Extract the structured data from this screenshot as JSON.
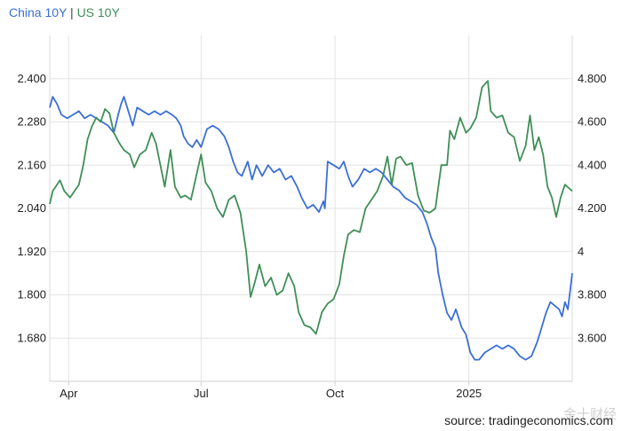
{
  "legend": {
    "series1": "China 10Y",
    "separator": "|",
    "series2": "US 10Y"
  },
  "source": "source: tradingeconomics.com",
  "watermark": "金十财经",
  "chart_data": {
    "type": "line",
    "grid": true,
    "x_ticks": [
      "Apr",
      "Jul",
      "Oct",
      "2025"
    ],
    "x_tick_dates": [
      "2024-04-01",
      "2024-07-01",
      "2024-10-01",
      "2025-01-01"
    ],
    "xlim": [
      "2024-03-19",
      "2025-03-13"
    ],
    "y_left_ticks": [
      "2.400",
      "2.280",
      "2.160",
      "2.040",
      "1.920",
      "1.800",
      "1.680"
    ],
    "y_left_lim": [
      1.56,
      2.52
    ],
    "y_right_ticks": [
      "4.800",
      "4.600",
      "4.400",
      "4.200",
      "4",
      "3.800",
      "3.600"
    ],
    "y_right_lim": [
      3.4,
      5.0
    ],
    "series": [
      {
        "name": "China 10Y",
        "axis": "left",
        "color": "#3b6fd4",
        "points": [
          [
            "2024-03-19",
            2.32
          ],
          [
            "2024-03-21",
            2.35
          ],
          [
            "2024-03-24",
            2.33
          ],
          [
            "2024-03-27",
            2.3
          ],
          [
            "2024-03-31",
            2.29
          ],
          [
            "2024-04-04",
            2.3
          ],
          [
            "2024-04-08",
            2.31
          ],
          [
            "2024-04-12",
            2.29
          ],
          [
            "2024-04-16",
            2.3
          ],
          [
            "2024-04-20",
            2.29
          ],
          [
            "2024-04-24",
            2.28
          ],
          [
            "2024-04-28",
            2.27
          ],
          [
            "2024-05-02",
            2.25
          ],
          [
            "2024-05-05",
            2.3
          ],
          [
            "2024-05-07",
            2.33
          ],
          [
            "2024-05-09",
            2.35
          ],
          [
            "2024-05-12",
            2.31
          ],
          [
            "2024-05-15",
            2.27
          ],
          [
            "2024-05-18",
            2.32
          ],
          [
            "2024-05-22",
            2.31
          ],
          [
            "2024-05-26",
            2.3
          ],
          [
            "2024-05-30",
            2.31
          ],
          [
            "2024-06-03",
            2.3
          ],
          [
            "2024-06-07",
            2.31
          ],
          [
            "2024-06-11",
            2.3
          ],
          [
            "2024-06-14",
            2.29
          ],
          [
            "2024-06-17",
            2.27
          ],
          [
            "2024-06-19",
            2.24
          ],
          [
            "2024-06-22",
            2.22
          ],
          [
            "2024-06-25",
            2.21
          ],
          [
            "2024-06-28",
            2.23
          ],
          [
            "2024-07-01",
            2.21
          ],
          [
            "2024-07-05",
            2.26
          ],
          [
            "2024-07-09",
            2.27
          ],
          [
            "2024-07-13",
            2.26
          ],
          [
            "2024-07-17",
            2.24
          ],
          [
            "2024-07-20",
            2.21
          ],
          [
            "2024-07-23",
            2.17
          ],
          [
            "2024-07-26",
            2.14
          ],
          [
            "2024-07-29",
            2.13
          ],
          [
            "2024-08-02",
            2.17
          ],
          [
            "2024-08-05",
            2.12
          ],
          [
            "2024-08-08",
            2.16
          ],
          [
            "2024-08-12",
            2.13
          ],
          [
            "2024-08-16",
            2.16
          ],
          [
            "2024-08-20",
            2.14
          ],
          [
            "2024-08-24",
            2.15
          ],
          [
            "2024-08-28",
            2.12
          ],
          [
            "2024-09-01",
            2.13
          ],
          [
            "2024-09-05",
            2.1
          ],
          [
            "2024-09-08",
            2.07
          ],
          [
            "2024-09-12",
            2.04
          ],
          [
            "2024-09-16",
            2.05
          ],
          [
            "2024-09-20",
            2.03
          ],
          [
            "2024-09-23",
            2.06
          ],
          [
            "2024-09-24",
            2.04
          ],
          [
            "2024-09-26",
            2.17
          ],
          [
            "2024-09-30",
            2.16
          ],
          [
            "2024-10-04",
            2.15
          ],
          [
            "2024-10-07",
            2.17
          ],
          [
            "2024-10-10",
            2.13
          ],
          [
            "2024-10-13",
            2.1
          ],
          [
            "2024-10-17",
            2.12
          ],
          [
            "2024-10-21",
            2.15
          ],
          [
            "2024-10-25",
            2.14
          ],
          [
            "2024-10-29",
            2.15
          ],
          [
            "2024-11-02",
            2.14
          ],
          [
            "2024-11-06",
            2.12
          ],
          [
            "2024-11-10",
            2.1
          ],
          [
            "2024-11-14",
            2.09
          ],
          [
            "2024-11-18",
            2.07
          ],
          [
            "2024-11-22",
            2.06
          ],
          [
            "2024-11-26",
            2.05
          ],
          [
            "2024-11-30",
            2.03
          ],
          [
            "2024-12-03",
            2.0
          ],
          [
            "2024-12-06",
            1.96
          ],
          [
            "2024-12-09",
            1.93
          ],
          [
            "2024-12-11",
            1.86
          ],
          [
            "2024-12-14",
            1.8
          ],
          [
            "2024-12-17",
            1.75
          ],
          [
            "2024-12-20",
            1.73
          ],
          [
            "2024-12-23",
            1.76
          ],
          [
            "2024-12-27",
            1.71
          ],
          [
            "2024-12-30",
            1.69
          ],
          [
            "2025-01-02",
            1.64
          ],
          [
            "2025-01-05",
            1.62
          ],
          [
            "2025-01-08",
            1.62
          ],
          [
            "2025-01-12",
            1.64
          ],
          [
            "2025-01-16",
            1.65
          ],
          [
            "2025-01-20",
            1.66
          ],
          [
            "2025-01-24",
            1.65
          ],
          [
            "2025-01-28",
            1.66
          ],
          [
            "2025-02-01",
            1.65
          ],
          [
            "2025-02-05",
            1.63
          ],
          [
            "2025-02-09",
            1.62
          ],
          [
            "2025-02-13",
            1.63
          ],
          [
            "2025-02-17",
            1.67
          ],
          [
            "2025-02-20",
            1.71
          ],
          [
            "2025-02-23",
            1.75
          ],
          [
            "2025-02-26",
            1.78
          ],
          [
            "2025-03-01",
            1.77
          ],
          [
            "2025-03-04",
            1.76
          ],
          [
            "2025-03-06",
            1.74
          ],
          [
            "2025-03-08",
            1.78
          ],
          [
            "2025-03-10",
            1.76
          ],
          [
            "2025-03-13",
            1.86
          ]
        ]
      },
      {
        "name": "US 10Y",
        "axis": "right",
        "color": "#3f8f57",
        "points": [
          [
            "2024-03-19",
            4.22
          ],
          [
            "2024-03-21",
            4.28
          ],
          [
            "2024-03-23",
            4.3
          ],
          [
            "2024-03-26",
            4.33
          ],
          [
            "2024-03-29",
            4.28
          ],
          [
            "2024-04-02",
            4.25
          ],
          [
            "2024-04-05",
            4.28
          ],
          [
            "2024-04-08",
            4.31
          ],
          [
            "2024-04-11",
            4.4
          ],
          [
            "2024-04-14",
            4.52
          ],
          [
            "2024-04-17",
            4.58
          ],
          [
            "2024-04-20",
            4.62
          ],
          [
            "2024-04-23",
            4.6
          ],
          [
            "2024-04-26",
            4.66
          ],
          [
            "2024-04-29",
            4.64
          ],
          [
            "2024-05-02",
            4.55
          ],
          [
            "2024-05-06",
            4.5
          ],
          [
            "2024-05-09",
            4.47
          ],
          [
            "2024-05-13",
            4.45
          ],
          [
            "2024-05-16",
            4.39
          ],
          [
            "2024-05-20",
            4.45
          ],
          [
            "2024-05-24",
            4.47
          ],
          [
            "2024-05-28",
            4.55
          ],
          [
            "2024-05-31",
            4.5
          ],
          [
            "2024-06-03",
            4.4
          ],
          [
            "2024-06-06",
            4.3
          ],
          [
            "2024-06-10",
            4.47
          ],
          [
            "2024-06-13",
            4.3
          ],
          [
            "2024-06-17",
            4.25
          ],
          [
            "2024-06-20",
            4.26
          ],
          [
            "2024-06-24",
            4.24
          ],
          [
            "2024-06-28",
            4.36
          ],
          [
            "2024-07-01",
            4.45
          ],
          [
            "2024-07-04",
            4.32
          ],
          [
            "2024-07-08",
            4.28
          ],
          [
            "2024-07-12",
            4.2
          ],
          [
            "2024-07-16",
            4.16
          ],
          [
            "2024-07-20",
            4.24
          ],
          [
            "2024-07-24",
            4.26
          ],
          [
            "2024-07-28",
            4.18
          ],
          [
            "2024-08-01",
            4.0
          ],
          [
            "2024-08-04",
            3.79
          ],
          [
            "2024-08-07",
            3.86
          ],
          [
            "2024-08-10",
            3.94
          ],
          [
            "2024-08-14",
            3.84
          ],
          [
            "2024-08-18",
            3.88
          ],
          [
            "2024-08-22",
            3.8
          ],
          [
            "2024-08-26",
            3.82
          ],
          [
            "2024-08-30",
            3.9
          ],
          [
            "2024-09-03",
            3.84
          ],
          [
            "2024-09-06",
            3.72
          ],
          [
            "2024-09-10",
            3.66
          ],
          [
            "2024-09-14",
            3.65
          ],
          [
            "2024-09-18",
            3.62
          ],
          [
            "2024-09-22",
            3.72
          ],
          [
            "2024-09-26",
            3.76
          ],
          [
            "2024-09-30",
            3.78
          ],
          [
            "2024-10-04",
            3.85
          ],
          [
            "2024-10-07",
            3.98
          ],
          [
            "2024-10-10",
            4.08
          ],
          [
            "2024-10-14",
            4.1
          ],
          [
            "2024-10-18",
            4.09
          ],
          [
            "2024-10-22",
            4.2
          ],
          [
            "2024-10-26",
            4.24
          ],
          [
            "2024-10-30",
            4.28
          ],
          [
            "2024-11-03",
            4.35
          ],
          [
            "2024-11-06",
            4.44
          ],
          [
            "2024-11-09",
            4.31
          ],
          [
            "2024-11-12",
            4.43
          ],
          [
            "2024-11-15",
            4.44
          ],
          [
            "2024-11-19",
            4.4
          ],
          [
            "2024-11-23",
            4.41
          ],
          [
            "2024-11-27",
            4.26
          ],
          [
            "2024-12-01",
            4.19
          ],
          [
            "2024-12-05",
            4.18
          ],
          [
            "2024-12-09",
            4.2
          ],
          [
            "2024-12-13",
            4.4
          ],
          [
            "2024-12-17",
            4.4
          ],
          [
            "2024-12-19",
            4.56
          ],
          [
            "2024-12-22",
            4.52
          ],
          [
            "2024-12-26",
            4.62
          ],
          [
            "2024-12-30",
            4.55
          ],
          [
            "2025-01-02",
            4.57
          ],
          [
            "2025-01-06",
            4.62
          ],
          [
            "2025-01-10",
            4.76
          ],
          [
            "2025-01-14",
            4.79
          ],
          [
            "2025-01-16",
            4.65
          ],
          [
            "2025-01-20",
            4.62
          ],
          [
            "2025-01-24",
            4.63
          ],
          [
            "2025-01-28",
            4.55
          ],
          [
            "2025-02-01",
            4.53
          ],
          [
            "2025-02-05",
            4.42
          ],
          [
            "2025-02-09",
            4.49
          ],
          [
            "2025-02-12",
            4.63
          ],
          [
            "2025-02-15",
            4.47
          ],
          [
            "2025-02-18",
            4.53
          ],
          [
            "2025-02-21",
            4.45
          ],
          [
            "2025-02-24",
            4.3
          ],
          [
            "2025-02-27",
            4.25
          ],
          [
            "2025-03-02",
            4.16
          ],
          [
            "2025-03-05",
            4.25
          ],
          [
            "2025-03-08",
            4.31
          ],
          [
            "2025-03-13",
            4.28
          ]
        ]
      }
    ]
  }
}
